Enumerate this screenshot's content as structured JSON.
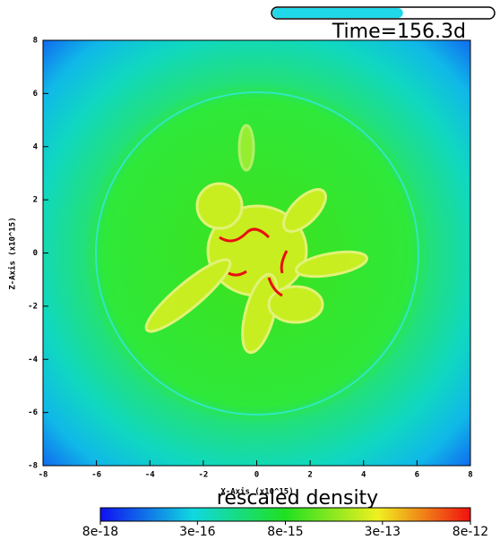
{
  "chart_data": {
    "type": "heatmap",
    "title": "Time=156.3d",
    "progress": 0.59,
    "x_label": "X-Axis (x10^15)",
    "y_label": "Z-Axis (x10^15)",
    "xlim": [
      -8,
      8
    ],
    "ylim": [
      -8,
      8
    ],
    "xticks": [
      -8,
      -6,
      -4,
      -2,
      0,
      2,
      4,
      6,
      8
    ],
    "yticks": [
      -8,
      -6,
      -4,
      -2,
      0,
      2,
      4,
      6,
      8
    ],
    "colorbar": {
      "label": "rescaled density",
      "scale": "log",
      "lim": [
        8e-18,
        8e-12
      ],
      "ticks": [
        {
          "value": 8e-18,
          "label": "8e-18"
        },
        {
          "value": 3e-16,
          "label": "3e-16"
        },
        {
          "value": 8e-15,
          "label": "8e-15"
        },
        {
          "value": 3e-13,
          "label": "3e-13"
        },
        {
          "value": 8e-12,
          "label": "8e-12"
        }
      ]
    }
  }
}
